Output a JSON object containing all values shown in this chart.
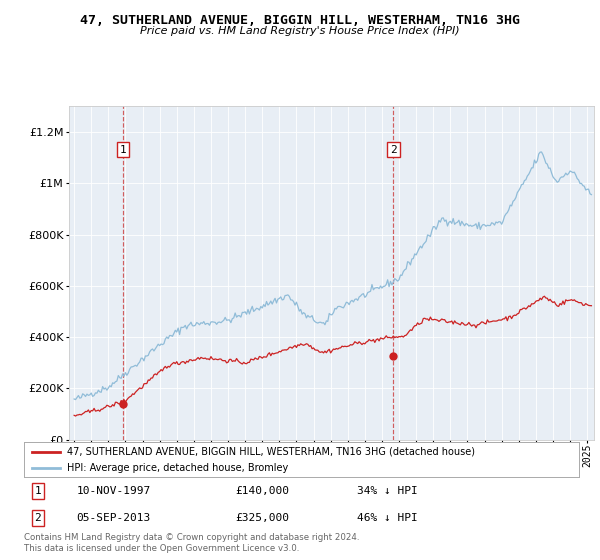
{
  "title": "47, SUTHERLAND AVENUE, BIGGIN HILL, WESTERHAM, TN16 3HG",
  "subtitle": "Price paid vs. HM Land Registry's House Price Index (HPI)",
  "bg_color": "#e8eef5",
  "hpi_color": "#90bcd8",
  "price_color": "#cc2222",
  "marker_color": "#cc2222",
  "transaction1_date": 1997.86,
  "transaction1_price": 140000,
  "transaction2_date": 2013.67,
  "transaction2_price": 325000,
  "legend_entry1": "47, SUTHERLAND AVENUE, BIGGIN HILL, WESTERHAM, TN16 3HG (detached house)",
  "legend_entry2": "HPI: Average price, detached house, Bromley",
  "note1_date": "10-NOV-1997",
  "note1_price": "£140,000",
  "note1_pct": "34% ↓ HPI",
  "note2_date": "05-SEP-2013",
  "note2_price": "£325,000",
  "note2_pct": "46% ↓ HPI",
  "footer": "Contains HM Land Registry data © Crown copyright and database right 2024.\nThis data is licensed under the Open Government Licence v3.0.",
  "ylim": [
    0,
    1300000
  ],
  "xlim_start": 1994.7,
  "xlim_end": 2025.4
}
